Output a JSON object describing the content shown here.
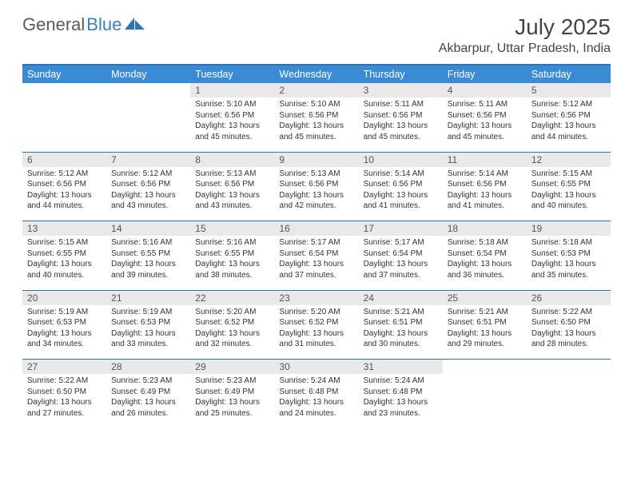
{
  "brand": {
    "part1": "General",
    "part2": "Blue"
  },
  "title": "July 2025",
  "location": "Akbarpur, Uttar Pradesh, India",
  "colors": {
    "header_bg": "#3b8bd4",
    "border": "#2f75b5",
    "daynum_bg": "#e9e9e9",
    "text": "#333333",
    "brand_gray": "#5a5a5a",
    "brand_blue": "#3b7fbf"
  },
  "day_headers": [
    "Sunday",
    "Monday",
    "Tuesday",
    "Wednesday",
    "Thursday",
    "Friday",
    "Saturday"
  ],
  "weeks": [
    [
      null,
      null,
      {
        "n": "1",
        "sr": "5:10 AM",
        "ss": "6:56 PM",
        "dl": "13 hours and 45 minutes."
      },
      {
        "n": "2",
        "sr": "5:10 AM",
        "ss": "6:56 PM",
        "dl": "13 hours and 45 minutes."
      },
      {
        "n": "3",
        "sr": "5:11 AM",
        "ss": "6:56 PM",
        "dl": "13 hours and 45 minutes."
      },
      {
        "n": "4",
        "sr": "5:11 AM",
        "ss": "6:56 PM",
        "dl": "13 hours and 45 minutes."
      },
      {
        "n": "5",
        "sr": "5:12 AM",
        "ss": "6:56 PM",
        "dl": "13 hours and 44 minutes."
      }
    ],
    [
      {
        "n": "6",
        "sr": "5:12 AM",
        "ss": "6:56 PM",
        "dl": "13 hours and 44 minutes."
      },
      {
        "n": "7",
        "sr": "5:12 AM",
        "ss": "6:56 PM",
        "dl": "13 hours and 43 minutes."
      },
      {
        "n": "8",
        "sr": "5:13 AM",
        "ss": "6:56 PM",
        "dl": "13 hours and 43 minutes."
      },
      {
        "n": "9",
        "sr": "5:13 AM",
        "ss": "6:56 PM",
        "dl": "13 hours and 42 minutes."
      },
      {
        "n": "10",
        "sr": "5:14 AM",
        "ss": "6:56 PM",
        "dl": "13 hours and 41 minutes."
      },
      {
        "n": "11",
        "sr": "5:14 AM",
        "ss": "6:56 PM",
        "dl": "13 hours and 41 minutes."
      },
      {
        "n": "12",
        "sr": "5:15 AM",
        "ss": "6:55 PM",
        "dl": "13 hours and 40 minutes."
      }
    ],
    [
      {
        "n": "13",
        "sr": "5:15 AM",
        "ss": "6:55 PM",
        "dl": "13 hours and 40 minutes."
      },
      {
        "n": "14",
        "sr": "5:16 AM",
        "ss": "6:55 PM",
        "dl": "13 hours and 39 minutes."
      },
      {
        "n": "15",
        "sr": "5:16 AM",
        "ss": "6:55 PM",
        "dl": "13 hours and 38 minutes."
      },
      {
        "n": "16",
        "sr": "5:17 AM",
        "ss": "6:54 PM",
        "dl": "13 hours and 37 minutes."
      },
      {
        "n": "17",
        "sr": "5:17 AM",
        "ss": "6:54 PM",
        "dl": "13 hours and 37 minutes."
      },
      {
        "n": "18",
        "sr": "5:18 AM",
        "ss": "6:54 PM",
        "dl": "13 hours and 36 minutes."
      },
      {
        "n": "19",
        "sr": "5:18 AM",
        "ss": "6:53 PM",
        "dl": "13 hours and 35 minutes."
      }
    ],
    [
      {
        "n": "20",
        "sr": "5:19 AM",
        "ss": "6:53 PM",
        "dl": "13 hours and 34 minutes."
      },
      {
        "n": "21",
        "sr": "5:19 AM",
        "ss": "6:53 PM",
        "dl": "13 hours and 33 minutes."
      },
      {
        "n": "22",
        "sr": "5:20 AM",
        "ss": "6:52 PM",
        "dl": "13 hours and 32 minutes."
      },
      {
        "n": "23",
        "sr": "5:20 AM",
        "ss": "6:52 PM",
        "dl": "13 hours and 31 minutes."
      },
      {
        "n": "24",
        "sr": "5:21 AM",
        "ss": "6:51 PM",
        "dl": "13 hours and 30 minutes."
      },
      {
        "n": "25",
        "sr": "5:21 AM",
        "ss": "6:51 PM",
        "dl": "13 hours and 29 minutes."
      },
      {
        "n": "26",
        "sr": "5:22 AM",
        "ss": "6:50 PM",
        "dl": "13 hours and 28 minutes."
      }
    ],
    [
      {
        "n": "27",
        "sr": "5:22 AM",
        "ss": "6:50 PM",
        "dl": "13 hours and 27 minutes."
      },
      {
        "n": "28",
        "sr": "5:23 AM",
        "ss": "6:49 PM",
        "dl": "13 hours and 26 minutes."
      },
      {
        "n": "29",
        "sr": "5:23 AM",
        "ss": "6:49 PM",
        "dl": "13 hours and 25 minutes."
      },
      {
        "n": "30",
        "sr": "5:24 AM",
        "ss": "6:48 PM",
        "dl": "13 hours and 24 minutes."
      },
      {
        "n": "31",
        "sr": "5:24 AM",
        "ss": "6:48 PM",
        "dl": "13 hours and 23 minutes."
      },
      null,
      null
    ]
  ],
  "labels": {
    "sunrise": "Sunrise:",
    "sunset": "Sunset:",
    "daylight": "Daylight:"
  }
}
